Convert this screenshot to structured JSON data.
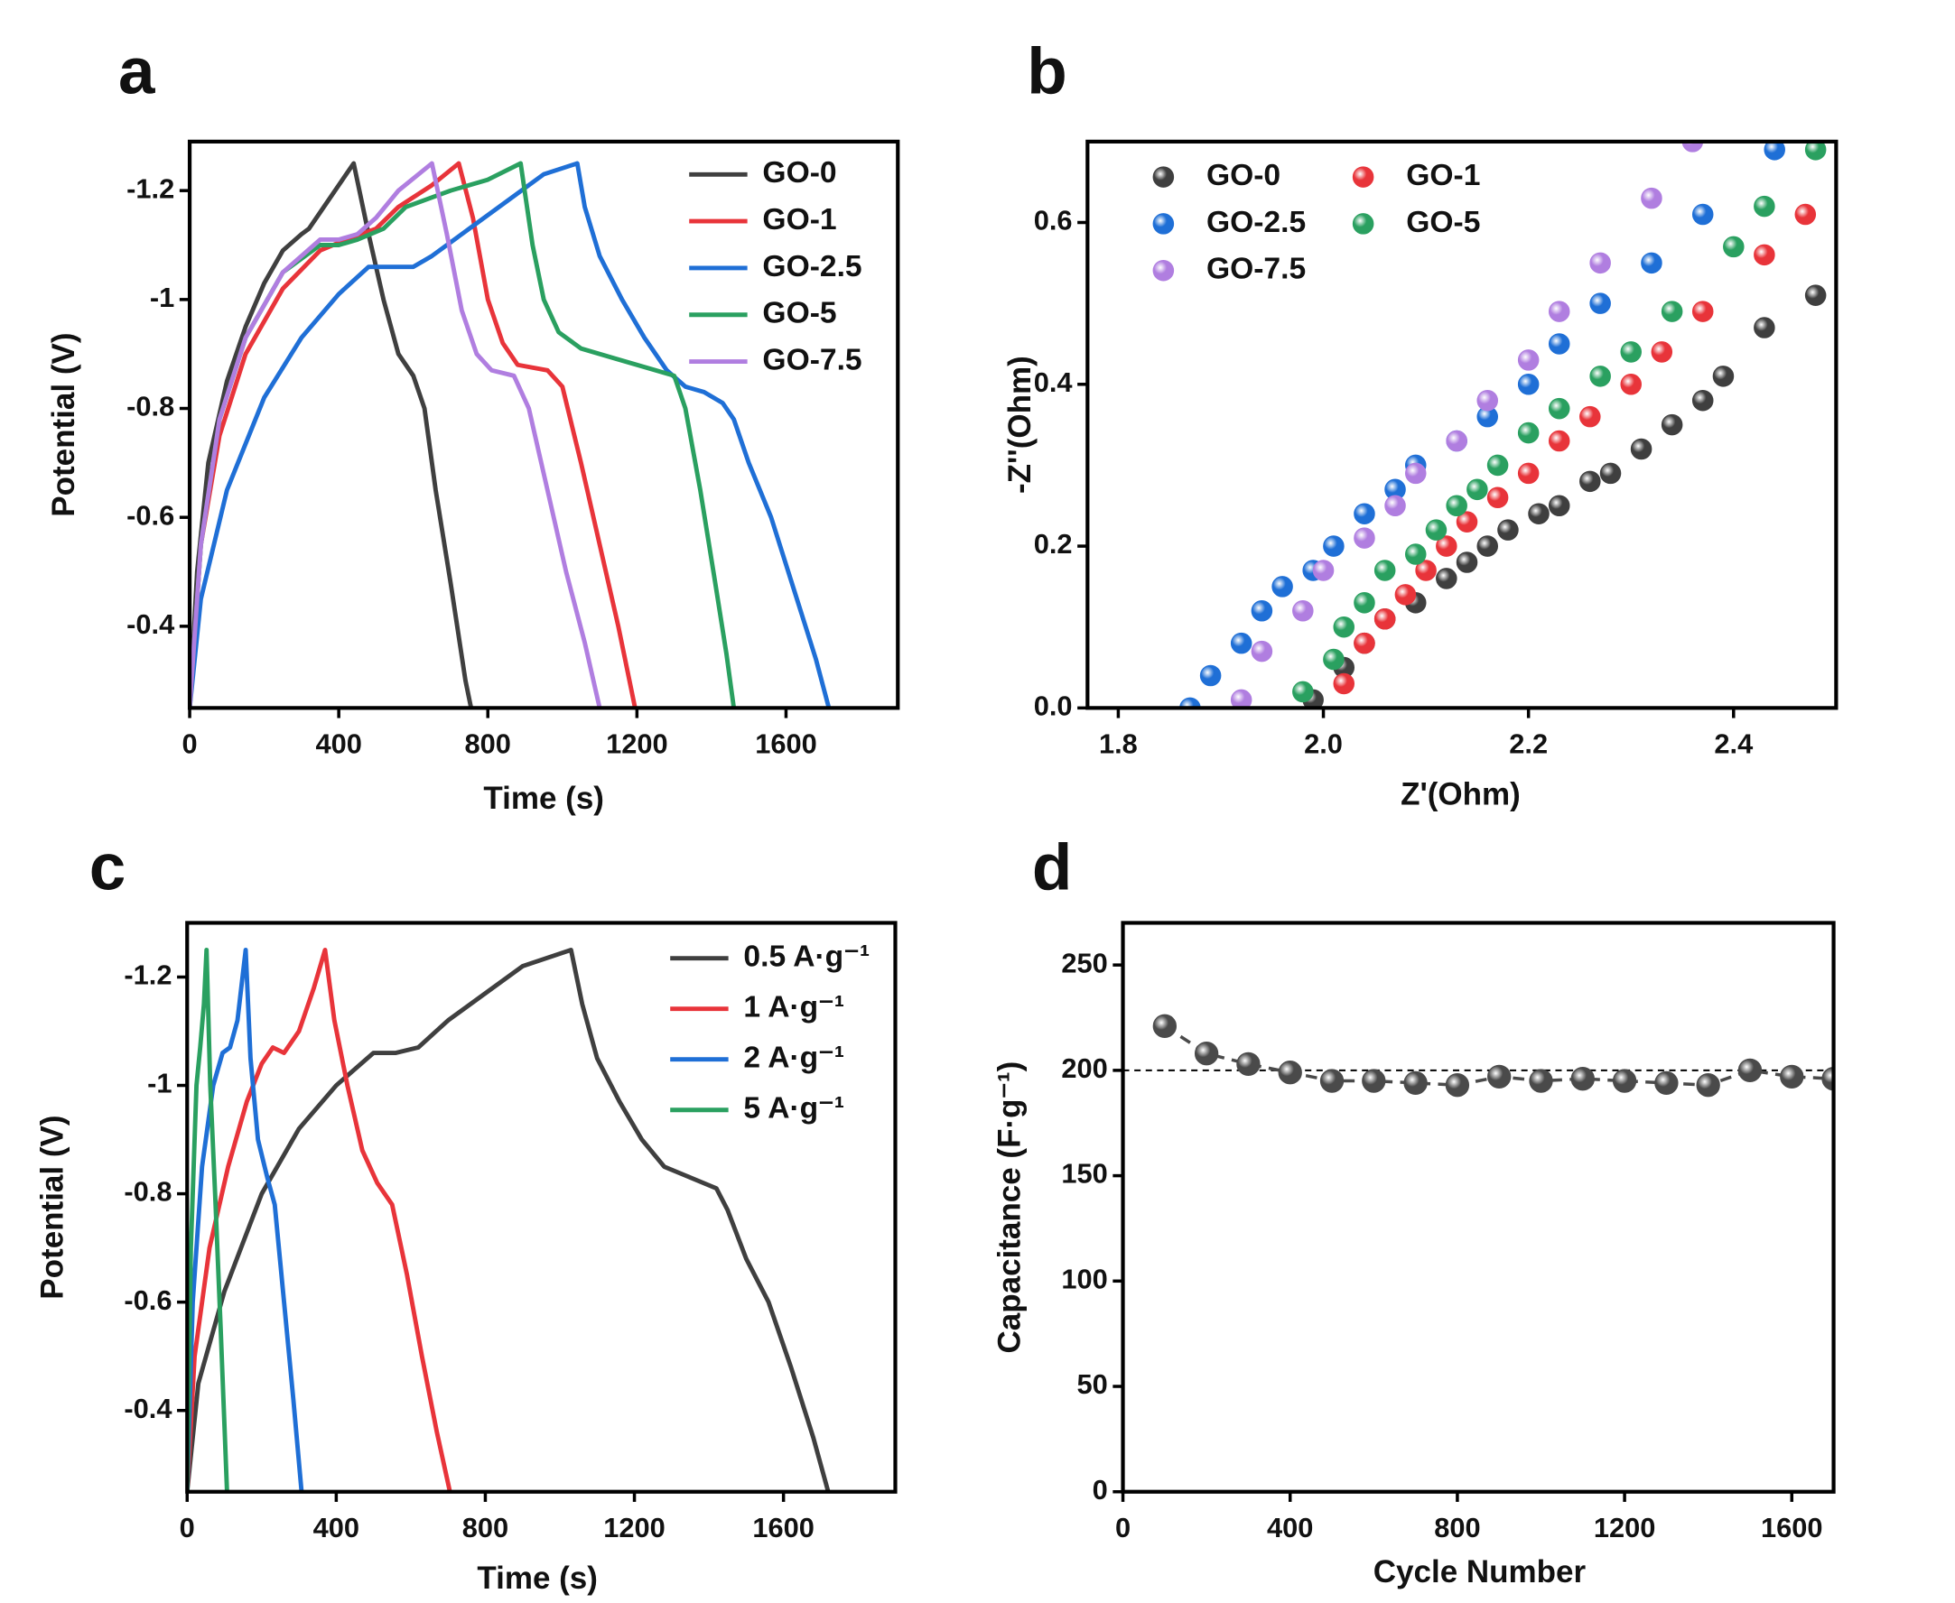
{
  "chart_data": [
    {
      "type": "line",
      "panel": "a",
      "xlabel": "Time (s)",
      "ylabel": "Potential (V)",
      "xlim": [
        0,
        1900
      ],
      "ylim": [
        -0.25,
        -1.29
      ],
      "xticks": [
        0,
        400,
        800,
        1200,
        1600
      ],
      "yticks": [
        -1.2,
        -1.0,
        -0.8,
        -0.6,
        -0.4
      ],
      "legend": true,
      "linestyle": "solid",
      "series": [
        {
          "name": "GO-0",
          "color": "#3f3f3f",
          "x": [
            0,
            20,
            50,
            100,
            150,
            200,
            250,
            300,
            320,
            350,
            400,
            440,
            480,
            520,
            560,
            600,
            630,
            660,
            700,
            740,
            755
          ],
          "values": [
            -0.25,
            -0.5,
            -0.7,
            -0.85,
            -0.95,
            -1.03,
            -1.09,
            -1.12,
            -1.13,
            -1.16,
            -1.21,
            -1.25,
            -1.12,
            -1.0,
            -0.9,
            -0.86,
            -0.8,
            -0.65,
            -0.48,
            -0.3,
            -0.25
          ]
        },
        {
          "name": "GO-1",
          "color": "#e8343a",
          "x": [
            0,
            30,
            80,
            150,
            250,
            350,
            420,
            500,
            560,
            650,
            722,
            760,
            800,
            840,
            880,
            960,
            1000,
            1050,
            1100,
            1150,
            1195
          ],
          "values": [
            -0.25,
            -0.55,
            -0.75,
            -0.9,
            -1.02,
            -1.09,
            -1.11,
            -1.13,
            -1.17,
            -1.21,
            -1.25,
            -1.15,
            -1.0,
            -0.92,
            -0.88,
            -0.87,
            -0.84,
            -0.7,
            -0.55,
            -0.4,
            -0.25
          ]
        },
        {
          "name": "GO-2.5",
          "color": "#1f6fd6",
          "x": [
            0,
            30,
            100,
            200,
            300,
            400,
            480,
            520,
            600,
            650,
            750,
            850,
            950,
            1040,
            1060,
            1100,
            1160,
            1220,
            1280,
            1330,
            1380,
            1430,
            1460,
            1500,
            1560,
            1620,
            1680,
            1715
          ],
          "values": [
            -0.25,
            -0.45,
            -0.65,
            -0.82,
            -0.93,
            -1.01,
            -1.06,
            -1.06,
            -1.06,
            -1.08,
            -1.13,
            -1.18,
            -1.23,
            -1.25,
            -1.17,
            -1.08,
            -1.0,
            -0.93,
            -0.87,
            -0.84,
            -0.83,
            -0.81,
            -0.78,
            -0.7,
            -0.6,
            -0.47,
            -0.34,
            -0.25
          ]
        },
        {
          "name": "GO-5",
          "color": "#2aa060",
          "x": [
            0,
            30,
            80,
            150,
            250,
            350,
            400,
            450,
            520,
            580,
            700,
            800,
            888,
            920,
            950,
            990,
            1050,
            1150,
            1250,
            1300,
            1330,
            1370,
            1410,
            1440,
            1460
          ],
          "values": [
            -0.25,
            -0.55,
            -0.78,
            -0.93,
            -1.05,
            -1.1,
            -1.1,
            -1.11,
            -1.13,
            -1.17,
            -1.2,
            -1.22,
            -1.25,
            -1.1,
            -1.0,
            -0.94,
            -0.91,
            -0.89,
            -0.87,
            -0.86,
            -0.8,
            -0.65,
            -0.48,
            -0.35,
            -0.25
          ]
        },
        {
          "name": "GO-7.5",
          "color": "#b07ee0",
          "x": [
            0,
            30,
            80,
            150,
            250,
            350,
            400,
            450,
            500,
            560,
            650,
            690,
            730,
            770,
            810,
            870,
            910,
            960,
            1010,
            1060,
            1100
          ],
          "values": [
            -0.25,
            -0.55,
            -0.78,
            -0.93,
            -1.05,
            -1.11,
            -1.11,
            -1.12,
            -1.15,
            -1.2,
            -1.25,
            -1.12,
            -0.98,
            -0.9,
            -0.87,
            -0.86,
            -0.8,
            -0.65,
            -0.5,
            -0.37,
            -0.25
          ]
        }
      ]
    },
    {
      "type": "scatter",
      "panel": "b",
      "xlabel": "Z'(Ohm)",
      "ylabel": "-Z''(Ohm)",
      "xlim": [
        1.77,
        2.5
      ],
      "ylim": [
        0,
        0.7
      ],
      "xticks": [
        1.8,
        {
          "value": 2,
          "label": "2.0"
        },
        2.2,
        2.4
      ],
      "yticks": [
        {
          "value": 0,
          "label": "0.0"
        },
        0.2,
        0.4,
        0.6
      ],
      "legend": true,
      "series": [
        {
          "name": "GO-0",
          "color": "#3f3f3f",
          "x": [
            1.99,
            2.02,
            2.04,
            2.06,
            2.09,
            2.12,
            2.14,
            2.16,
            2.18,
            2.21,
            2.23,
            2.26,
            2.28,
            2.31,
            2.34,
            2.37,
            2.39,
            2.43,
            2.48
          ],
          "values": [
            0.01,
            0.05,
            0.08,
            0.11,
            0.13,
            0.16,
            0.18,
            0.2,
            0.22,
            0.24,
            0.25,
            0.28,
            0.29,
            0.32,
            0.35,
            0.38,
            0.41,
            0.47,
            0.51
          ]
        },
        {
          "name": "GO-1",
          "color": "#e8343a",
          "x": [
            2.02,
            2.04,
            2.06,
            2.08,
            2.1,
            2.12,
            2.14,
            2.17,
            2.2,
            2.23,
            2.26,
            2.3,
            2.33,
            2.37,
            2.43,
            2.47
          ],
          "values": [
            0.03,
            0.08,
            0.11,
            0.14,
            0.17,
            0.2,
            0.23,
            0.26,
            0.29,
            0.33,
            0.36,
            0.4,
            0.44,
            0.49,
            0.56,
            0.61
          ]
        },
        {
          "name": "GO-2.5",
          "color": "#1f6fd6",
          "x": [
            1.87,
            1.89,
            1.92,
            1.94,
            1.96,
            1.99,
            2.01,
            2.04,
            2.07,
            2.09,
            2.13,
            2.16,
            2.2,
            2.23,
            2.27,
            2.32,
            2.37,
            2.44
          ],
          "values": [
            0,
            0.04,
            0.08,
            0.12,
            0.15,
            0.17,
            0.2,
            0.24,
            0.27,
            0.3,
            0.33,
            0.36,
            0.4,
            0.45,
            0.5,
            0.55,
            0.61,
            0.69
          ]
        },
        {
          "name": "GO-5",
          "color": "#2aa060",
          "x": [
            1.98,
            2.01,
            2.02,
            2.04,
            2.06,
            2.09,
            2.11,
            2.13,
            2.15,
            2.17,
            2.2,
            2.23,
            2.27,
            2.3,
            2.34,
            2.4,
            2.43,
            2.48
          ],
          "values": [
            0.02,
            0.06,
            0.1,
            0.13,
            0.17,
            0.19,
            0.22,
            0.25,
            0.27,
            0.3,
            0.34,
            0.37,
            0.41,
            0.44,
            0.49,
            0.57,
            0.62,
            0.69
          ]
        },
        {
          "name": "GO-7.5",
          "color": "#b07ee0",
          "x": [
            1.92,
            1.94,
            1.98,
            2.0,
            2.04,
            2.07,
            2.09,
            2.13,
            2.16,
            2.2,
            2.23,
            2.27,
            2.32,
            2.36
          ],
          "values": [
            0.01,
            0.07,
            0.12,
            0.17,
            0.21,
            0.25,
            0.29,
            0.33,
            0.38,
            0.43,
            0.49,
            0.55,
            0.63,
            0.7
          ]
        }
      ]
    },
    {
      "type": "line",
      "panel": "c",
      "xlabel": "Time (s)",
      "ylabel": "Potential (V)",
      "xlim": [
        0,
        1900
      ],
      "ylim": [
        -0.25,
        -1.3
      ],
      "xticks": [
        0,
        400,
        800,
        1200,
        1600
      ],
      "yticks": [
        -1.2,
        -1.0,
        -0.8,
        -0.6,
        -0.4
      ],
      "legend": true,
      "linestyle": "solid",
      "series": [
        {
          "name": "0.5 A·g⁻¹",
          "color": "#3f3f3f",
          "x": [
            0,
            30,
            100,
            200,
            300,
            400,
            500,
            560,
            620,
            700,
            800,
            900,
            1030,
            1060,
            1100,
            1160,
            1220,
            1280,
            1350,
            1420,
            1450,
            1500,
            1560,
            1620,
            1680,
            1720
          ],
          "values": [
            -0.25,
            -0.45,
            -0.62,
            -0.8,
            -0.92,
            -1.0,
            -1.06,
            -1.06,
            -1.07,
            -1.12,
            -1.17,
            -1.22,
            -1.25,
            -1.15,
            -1.05,
            -0.97,
            -0.9,
            -0.85,
            -0.83,
            -0.81,
            -0.77,
            -0.68,
            -0.6,
            -0.48,
            -0.35,
            -0.25
          ]
        },
        {
          "name": "1 A·g⁻¹",
          "color": "#e8343a",
          "x": [
            0,
            20,
            60,
            110,
            160,
            200,
            230,
            260,
            300,
            340,
            370,
            395,
            430,
            470,
            510,
            550,
            590,
            630,
            670,
            705
          ],
          "values": [
            -0.25,
            -0.5,
            -0.7,
            -0.85,
            -0.97,
            -1.04,
            -1.07,
            -1.06,
            -1.1,
            -1.18,
            -1.25,
            -1.12,
            -1.0,
            -0.88,
            -0.82,
            -0.78,
            -0.65,
            -0.5,
            -0.36,
            -0.25
          ]
        },
        {
          "name": "2 A·g⁻¹",
          "color": "#1f6fd6",
          "x": [
            0,
            15,
            40,
            70,
            95,
            115,
            135,
            157,
            170,
            190,
            215,
            235,
            260,
            285,
            307
          ],
          "values": [
            -0.25,
            -0.6,
            -0.85,
            -1.0,
            -1.06,
            -1.07,
            -1.12,
            -1.25,
            -1.05,
            -0.9,
            -0.83,
            -0.78,
            -0.6,
            -0.42,
            -0.25
          ]
        },
        {
          "name": "5 A·g⁻¹",
          "color": "#2aa060",
          "x": [
            0,
            10,
            25,
            35,
            45,
            52,
            62,
            75,
            90,
            107
          ],
          "values": [
            -0.25,
            -0.7,
            -1.0,
            -1.07,
            -1.15,
            -1.25,
            -1.0,
            -0.8,
            -0.55,
            -0.25
          ]
        }
      ]
    },
    {
      "type": "line",
      "panel": "d",
      "xlabel": "Cycle Number",
      "ylabel": "Capacitance (F·g⁻¹)",
      "xlim": [
        0,
        1700
      ],
      "ylim": [
        0,
        270
      ],
      "xticks": [
        0,
        400,
        800,
        1200,
        1600
      ],
      "yticks": [
        0,
        50,
        100,
        150,
        200,
        250
      ],
      "linestyle": "dashed",
      "marker": "circle",
      "hline": 200,
      "series": [
        {
          "color": "#4a4a4a",
          "x": [
            100,
            200,
            300,
            400,
            500,
            600,
            700,
            800,
            900,
            1000,
            1100,
            1200,
            1300,
            1400,
            1500,
            1600,
            1700
          ],
          "values": [
            221,
            208,
            203,
            199,
            195,
            195,
            194,
            193,
            197,
            195,
            196,
            195,
            194,
            193,
            200,
            197,
            196
          ]
        }
      ]
    }
  ]
}
